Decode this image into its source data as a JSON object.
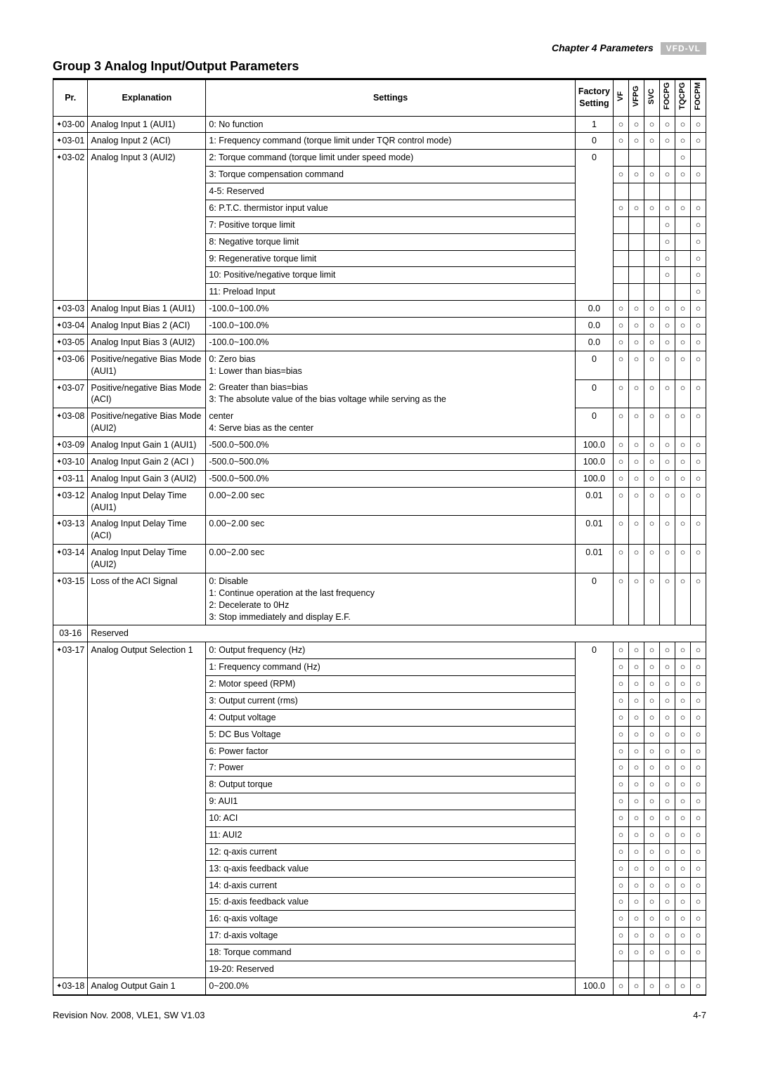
{
  "chapter_label": "Chapter 4 Parameters",
  "logo_text": "VFD-VL",
  "group_title": "Group 3 Analog Input/Output Parameters",
  "headers": {
    "pr": "Pr.",
    "explanation": "Explanation",
    "settings": "Settings",
    "factory": "Factory Setting",
    "modes": [
      "VF",
      "VFPG",
      "SVC",
      "FOCPG",
      "TQCPG",
      "FOCPM"
    ]
  },
  "circle": "○",
  "star": "✦",
  "footer_left": "Revision Nov. 2008, VLE1, SW V1.03",
  "footer_right": "4-7",
  "rows": [
    {
      "pr": "03-00",
      "star": true,
      "exp": "Analog Input 1 (AUI1)",
      "set": "0: No function",
      "fac": "1",
      "m": [
        1,
        1,
        1,
        1,
        1,
        1
      ]
    },
    {
      "pr": "03-01",
      "star": true,
      "exp": "Analog Input 2 (ACI)",
      "set": "1: Frequency command (torque limit under TQR control mode)",
      "fac": "0",
      "m": [
        1,
        1,
        1,
        1,
        1,
        1
      ]
    },
    {
      "pr": "03-02",
      "star": true,
      "exp": "Analog Input 3 (AUI2)",
      "set": "2: Torque command (torque limit under speed mode)",
      "fac": "0",
      "m": [
        0,
        0,
        0,
        0,
        1,
        0
      ],
      "exp_open_below": true,
      "pr_open_below": true,
      "fac_open_below": true
    },
    {
      "set": "3: Torque compensation command",
      "m": [
        1,
        1,
        1,
        1,
        1,
        1
      ],
      "cont": true
    },
    {
      "set": "4-5: Reserved",
      "m": [
        0,
        0,
        0,
        0,
        0,
        0
      ],
      "cont": true,
      "blank_modes": true
    },
    {
      "set": "6: P.T.C. thermistor input value",
      "m": [
        1,
        1,
        1,
        1,
        1,
        1
      ],
      "cont": true
    },
    {
      "set": "7: Positive torque limit",
      "m": [
        0,
        0,
        0,
        1,
        0,
        1
      ],
      "cont": true
    },
    {
      "set": "8: Negative torque limit",
      "m": [
        0,
        0,
        0,
        1,
        0,
        1
      ],
      "cont": true
    },
    {
      "set": "9: Regenerative torque limit",
      "m": [
        0,
        0,
        0,
        1,
        0,
        1
      ],
      "cont": true
    },
    {
      "set": "10: Positive/negative torque limit",
      "m": [
        0,
        0,
        0,
        1,
        0,
        1
      ],
      "cont": true
    },
    {
      "set": "11: Preload Input",
      "m": [
        0,
        0,
        0,
        0,
        0,
        1
      ],
      "cont": true,
      "last_cont": true
    },
    {
      "pr": "03-03",
      "star": true,
      "exp": "Analog Input Bias 1 (AUI1)",
      "set": "-100.0~100.0%",
      "fac": "0.0",
      "m": [
        1,
        1,
        1,
        1,
        1,
        1
      ]
    },
    {
      "pr": "03-04",
      "star": true,
      "exp": "Analog Input Bias 2 (ACI)",
      "set": "-100.0~100.0%",
      "fac": "0.0",
      "m": [
        1,
        1,
        1,
        1,
        1,
        1
      ]
    },
    {
      "pr": "03-05",
      "star": true,
      "exp": "Analog Input Bias 3 (AUI2)",
      "set": "-100.0~100.0%",
      "fac": "0.0",
      "m": [
        1,
        1,
        1,
        1,
        1,
        1
      ]
    },
    {
      "pr": "03-06",
      "star": true,
      "exp": "Positive/negative Bias Mode (AUI1)",
      "set": "0: Zero bias\n1: Lower than bias=bias",
      "fac": "0",
      "m": [
        1,
        1,
        1,
        1,
        1,
        1
      ],
      "set_open_below": true
    },
    {
      "pr": "03-07",
      "star": true,
      "exp": "Positive/negative Bias Mode (ACI)",
      "set": "2: Greater than bias=bias\n3: The absolute value of the bias voltage while serving as the",
      "fac": "0",
      "m": [
        1,
        1,
        1,
        1,
        1,
        1
      ],
      "set_open_above": true,
      "set_open_below": true,
      "set_justify": true
    },
    {
      "pr": "03-08",
      "star": true,
      "exp": "Positive/negative Bias Mode (AUI2)",
      "set": "    center\n4: Serve bias as the center",
      "fac": "0",
      "m": [
        1,
        1,
        1,
        1,
        1,
        1
      ],
      "set_open_above": true
    },
    {
      "pr": "03-09",
      "star": true,
      "exp": "Analog Input Gain 1 (AUI1)",
      "set": "-500.0~500.0%",
      "fac": "100.0",
      "m": [
        1,
        1,
        1,
        1,
        1,
        1
      ]
    },
    {
      "pr": "03-10",
      "star": true,
      "exp": "Analog Input Gain 2 (ACI )",
      "set": "-500.0~500.0%",
      "fac": "100.0",
      "m": [
        1,
        1,
        1,
        1,
        1,
        1
      ]
    },
    {
      "pr": "03-11",
      "star": true,
      "exp": "Analog Input Gain 3 (AUI2)",
      "set": "-500.0~500.0%",
      "fac": "100.0",
      "m": [
        1,
        1,
        1,
        1,
        1,
        1
      ]
    },
    {
      "pr": "03-12",
      "star": true,
      "exp": "Analog Input Delay Time (AUI1)",
      "set": "0.00~2.00 sec",
      "fac": "0.01",
      "m": [
        1,
        1,
        1,
        1,
        1,
        1
      ]
    },
    {
      "pr": "03-13",
      "star": true,
      "exp": "Analog Input Delay Time (ACI)",
      "set": "0.00~2.00 sec",
      "fac": "0.01",
      "m": [
        1,
        1,
        1,
        1,
        1,
        1
      ]
    },
    {
      "pr": "03-14",
      "star": true,
      "exp": "Analog Input Delay Time (AUI2)",
      "set": "0.00~2.00 sec",
      "fac": "0.01",
      "m": [
        1,
        1,
        1,
        1,
        1,
        1
      ]
    },
    {
      "pr": "03-15",
      "star": true,
      "exp": "Loss of the ACI Signal",
      "set": "0: Disable\n1: Continue operation at the last frequency\n2: Decelerate to 0Hz\n3: Stop immediately and display E.F.",
      "fac": "0",
      "m": [
        1,
        1,
        1,
        1,
        1,
        1
      ]
    },
    {
      "pr": "03-16",
      "star": false,
      "exp": "Reserved",
      "full_reserved": true
    },
    {
      "pr": "03-17",
      "star": true,
      "exp": "Analog Output Selection 1",
      "set": "0: Output frequency (Hz)",
      "fac": "0",
      "m": [
        1,
        1,
        1,
        1,
        1,
        1
      ],
      "exp_open_below": true,
      "pr_open_below": true,
      "fac_open_below": true
    },
    {
      "set": "1: Frequency command (Hz)",
      "m": [
        1,
        1,
        1,
        1,
        1,
        1
      ],
      "cont": true
    },
    {
      "set": "2: Motor speed (RPM)",
      "m": [
        1,
        1,
        1,
        1,
        1,
        1
      ],
      "cont": true
    },
    {
      "set": "3: Output current (rms)",
      "m": [
        1,
        1,
        1,
        1,
        1,
        1
      ],
      "cont": true
    },
    {
      "set": "4: Output voltage",
      "m": [
        1,
        1,
        1,
        1,
        1,
        1
      ],
      "cont": true
    },
    {
      "set": "5: DC Bus  Voltage",
      "m": [
        1,
        1,
        1,
        1,
        1,
        1
      ],
      "cont": true
    },
    {
      "set": "6: Power factor",
      "m": [
        1,
        1,
        1,
        1,
        1,
        1
      ],
      "cont": true
    },
    {
      "set": "7: Power",
      "m": [
        1,
        1,
        1,
        1,
        1,
        1
      ],
      "cont": true
    },
    {
      "set": "8: Output torque",
      "m": [
        1,
        1,
        1,
        1,
        1,
        1
      ],
      "cont": true
    },
    {
      "set": "9: AUI1",
      "m": [
        1,
        1,
        1,
        1,
        1,
        1
      ],
      "cont": true
    },
    {
      "set": "10: ACI",
      "m": [
        1,
        1,
        1,
        1,
        1,
        1
      ],
      "cont": true
    },
    {
      "set": "11: AUI2",
      "m": [
        1,
        1,
        1,
        1,
        1,
        1
      ],
      "cont": true
    },
    {
      "set": "12: q-axis current",
      "m": [
        1,
        1,
        1,
        1,
        1,
        1
      ],
      "cont": true
    },
    {
      "set": "13: q-axis feedback value",
      "m": [
        1,
        1,
        1,
        1,
        1,
        1
      ],
      "cont": true
    },
    {
      "set": "14: d-axis current",
      "m": [
        1,
        1,
        1,
        1,
        1,
        1
      ],
      "cont": true
    },
    {
      "set": "15: d-axis feedback value",
      "m": [
        1,
        1,
        1,
        1,
        1,
        1
      ],
      "cont": true
    },
    {
      "set": "16: q-axis voltage",
      "m": [
        1,
        1,
        1,
        1,
        1,
        1
      ],
      "cont": true
    },
    {
      "set": "17: d-axis voltage",
      "m": [
        1,
        1,
        1,
        1,
        1,
        1
      ],
      "cont": true
    },
    {
      "set": "18: Torque command",
      "m": [
        1,
        1,
        1,
        1,
        1,
        1
      ],
      "cont": true
    },
    {
      "set": "19-20: Reserved",
      "m": [
        0,
        0,
        0,
        0,
        0,
        0
      ],
      "cont": true,
      "blank_modes": true,
      "last_cont": true
    },
    {
      "pr": "03-18",
      "star": true,
      "exp": "Analog Output Gain 1",
      "set": "0~200.0%",
      "fac": "100.0",
      "m": [
        1,
        1,
        1,
        1,
        1,
        1
      ]
    }
  ]
}
